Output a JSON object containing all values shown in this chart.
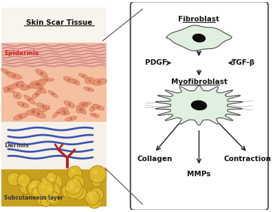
{
  "left_panel": {
    "epidermis_label": "Epidermis",
    "dermis_label": "Dermis",
    "subcutaneous_label": "Subcutaneous layer",
    "title": "Skin Scar Tissue",
    "epid_stripe_color": "#c07070",
    "epid_bg": "#f0b0a0",
    "epid_pink_bg": "#e8a090",
    "dermis_cell_bg": "#f5c0a0",
    "dermis_cell_color": "#e89070",
    "dermis_cell_edge": "#c07050",
    "dermis_nucleus_color": "#c06040",
    "dermis_lower_bg": "#f5f0ea",
    "blue_line_color": "#2244aa",
    "vessel_color": "#bb2020",
    "fat_bg": "#c8a020",
    "fat_color": "#ddb828",
    "fat_edge": "#a88010",
    "fat_highlight": "#eed050"
  },
  "right_panel": {
    "bg": "#ffffff",
    "border_color": "#444444",
    "fibroblast_label": "Fibroblast",
    "myofib_label": "Myofibroblast",
    "pdgf_label": "PDGF",
    "tgfb_label": "TGF-β",
    "collagen_label": "Collagen",
    "mmps_label": "MMPs",
    "contraction_label": "Contraction",
    "cell_fill": "#e0f0e0",
    "cell_outline": "#555555",
    "nucleus_color": "#0a0a0a",
    "arrow_color": "#222222",
    "fiber_color": "#aaaaaa"
  }
}
